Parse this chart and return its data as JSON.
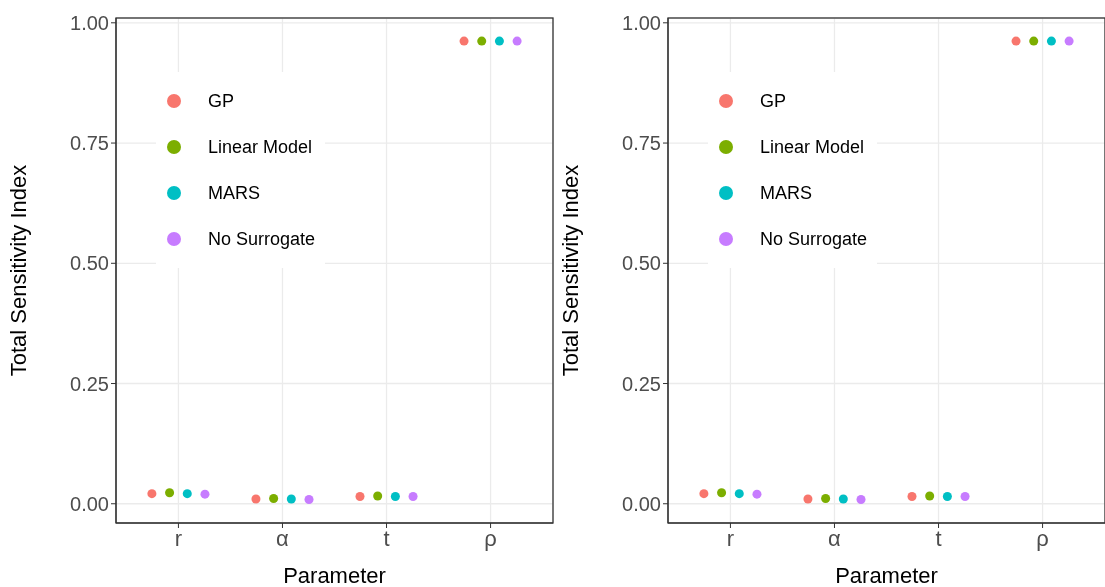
{
  "chart_data": [
    {
      "type": "scatter",
      "xlabel": "Parameter",
      "ylabel": "Total Sensitivity Index",
      "categories": [
        "r",
        "α",
        "t",
        "ρ"
      ],
      "ylim": [
        -0.04,
        1.01
      ],
      "yticks": [
        {
          "value": 0,
          "label": "0.00"
        },
        {
          "value": 0.25,
          "label": "0.25"
        },
        {
          "value": 0.5,
          "label": "0.50"
        },
        {
          "value": 0.75,
          "label": "0.75"
        },
        {
          "value": 1,
          "label": "1.00"
        }
      ],
      "grid": true,
      "legend": "top left",
      "marker": "circle",
      "series": [
        {
          "name": "GP",
          "color": "#f8766d",
          "values": [
            0.021,
            0.01,
            0.015,
            0.962
          ]
        },
        {
          "name": "Linear Model",
          "color": "#7cae00",
          "values": [
            0.023,
            0.011,
            0.016,
            0.962
          ]
        },
        {
          "name": "MARS",
          "color": "#00bfc4",
          "values": [
            0.021,
            0.01,
            0.015,
            0.962
          ]
        },
        {
          "name": "No Surrogate",
          "color": "#c77cff",
          "values": [
            0.02,
            0.009,
            0.015,
            0.962
          ]
        }
      ]
    },
    {
      "type": "scatter",
      "xlabel": "Parameter",
      "ylabel": "Total Sensitivity Index",
      "categories": [
        "r",
        "α",
        "t",
        "ρ"
      ],
      "ylim": [
        -0.04,
        1.01
      ],
      "yticks": [
        {
          "value": 0,
          "label": "0.00"
        },
        {
          "value": 0.25,
          "label": "0.25"
        },
        {
          "value": 0.5,
          "label": "0.50"
        },
        {
          "value": 0.75,
          "label": "0.75"
        },
        {
          "value": 1,
          "label": "1.00"
        }
      ],
      "grid": true,
      "legend": "top left",
      "marker": "circle",
      "series": [
        {
          "name": "GP",
          "color": "#f8766d",
          "values": [
            0.021,
            0.01,
            0.015,
            0.962
          ]
        },
        {
          "name": "Linear Model",
          "color": "#7cae00",
          "values": [
            0.023,
            0.011,
            0.016,
            0.962
          ]
        },
        {
          "name": "MARS",
          "color": "#00bfc4",
          "values": [
            0.021,
            0.01,
            0.015,
            0.962
          ]
        },
        {
          "name": "No Surrogate",
          "color": "#c77cff",
          "values": [
            0.02,
            0.009,
            0.015,
            0.962
          ]
        }
      ]
    }
  ]
}
